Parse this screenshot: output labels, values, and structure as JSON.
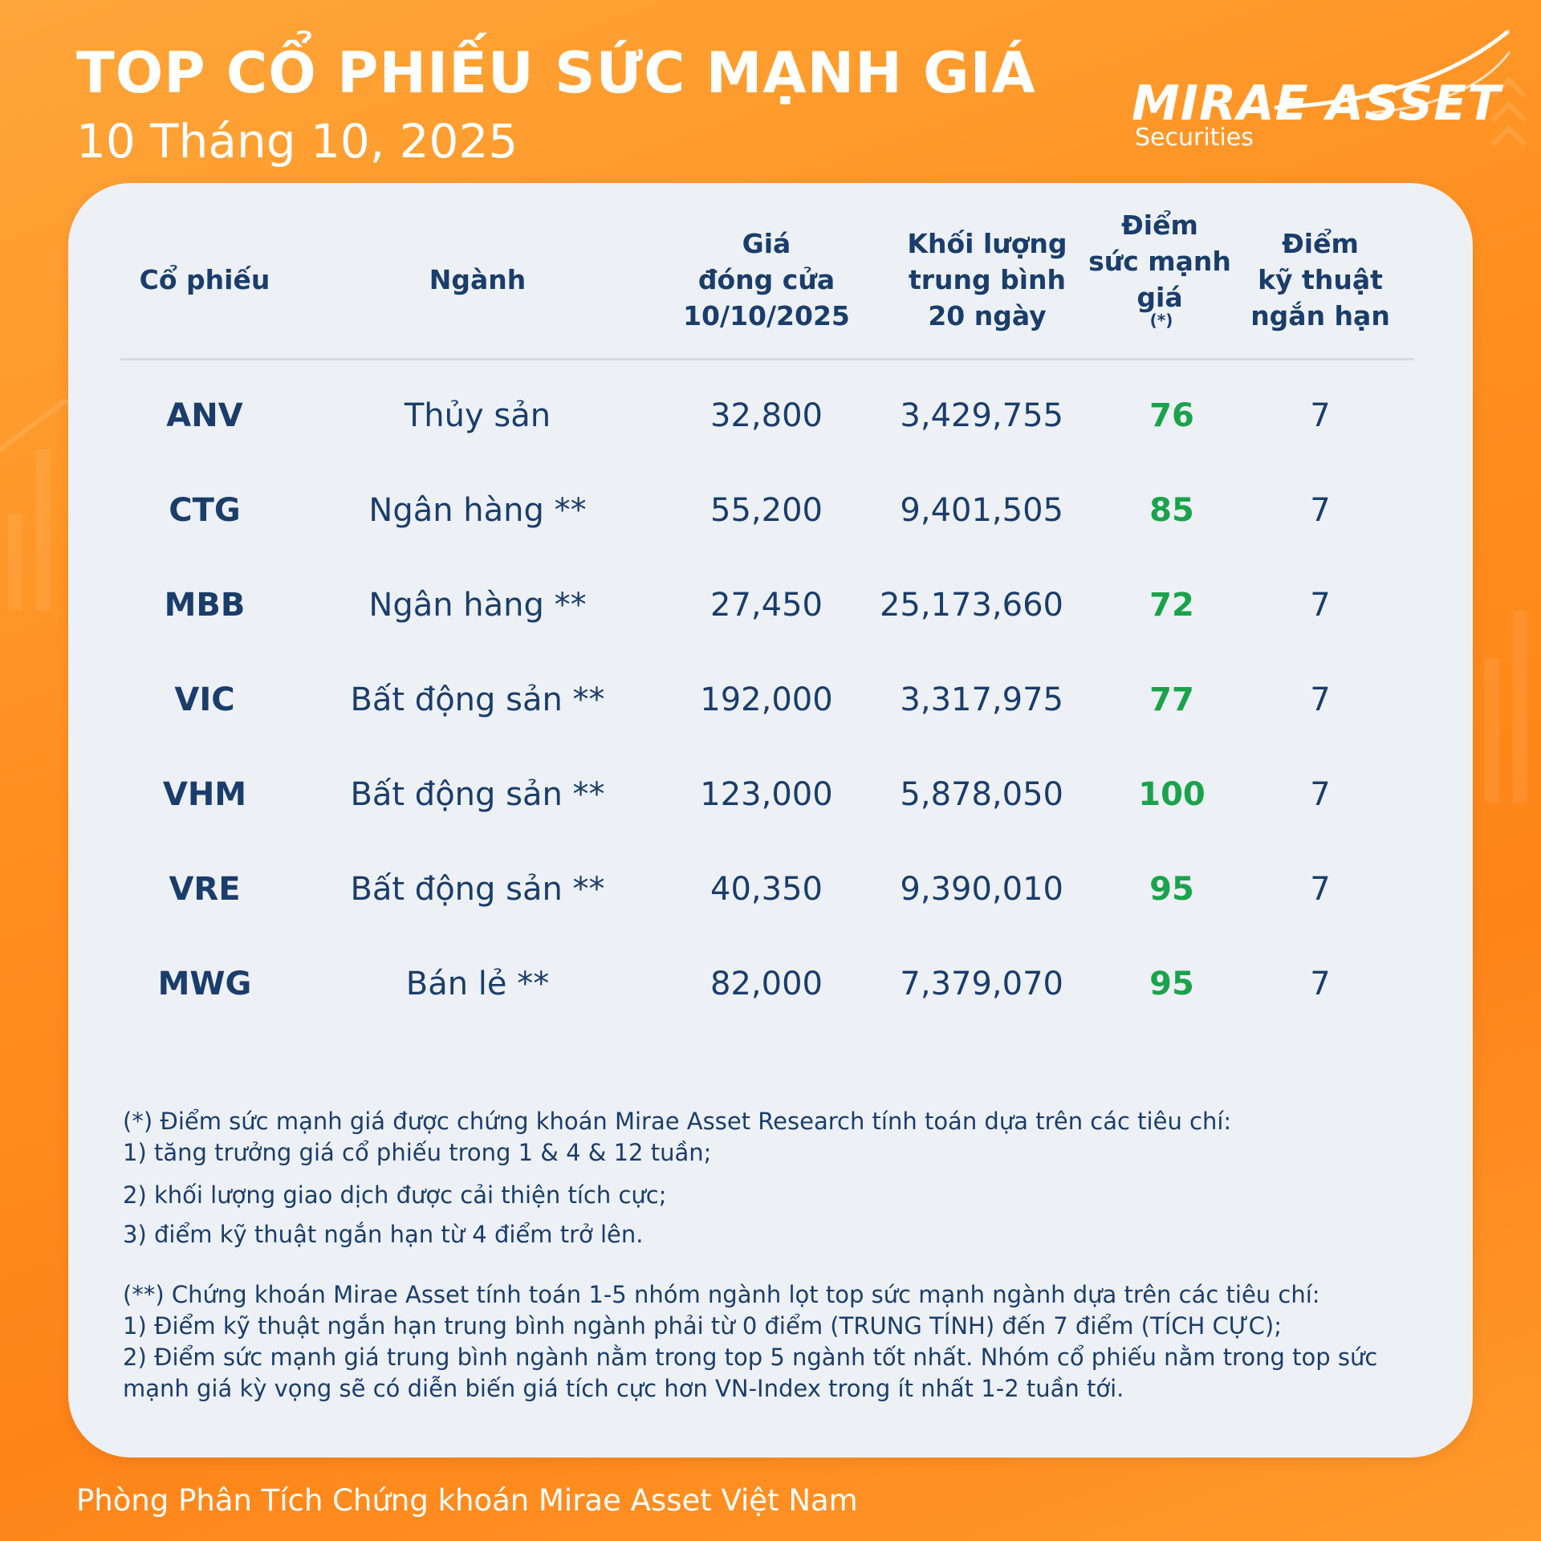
{
  "header": {
    "title": "TOP CỔ PHIẾU SỨC MẠNH GIÁ",
    "date": "10 Tháng 10, 2025"
  },
  "logo": {
    "brand": "MIRAE ASSET",
    "sub": "Securities"
  },
  "table": {
    "columns": {
      "ticker": [
        "Cổ phiếu"
      ],
      "sector": [
        "Ngành"
      ],
      "price": [
        "Giá",
        "đóng cửa",
        "10/10/2025"
      ],
      "volume": [
        "Khối lượng",
        "trung bình",
        "20 ngày"
      ],
      "strength": [
        "Điểm",
        "sức mạnh",
        "giá"
      ],
      "strength_mark": "(*)",
      "technical": [
        "Điểm",
        "kỹ thuật",
        "ngắn hạn"
      ]
    },
    "rows": [
      {
        "ticker": "ANV",
        "sector": "Thủy sản",
        "price": "32,800",
        "volume": "3,429,755",
        "strength": "76",
        "technical": "7"
      },
      {
        "ticker": "CTG",
        "sector": "Ngân hàng **",
        "price": "55,200",
        "volume": "9,401,505",
        "strength": "85",
        "technical": "7"
      },
      {
        "ticker": "MBB",
        "sector": "Ngân hàng **",
        "price": "27,450",
        "volume": "25,173,660",
        "strength": "72",
        "technical": "7"
      },
      {
        "ticker": "VIC",
        "sector": "Bất động sản **",
        "price": "192,000",
        "volume": "3,317,975",
        "strength": "77",
        "technical": "7"
      },
      {
        "ticker": "VHM",
        "sector": "Bất động sản **",
        "price": "123,000",
        "volume": "5,878,050",
        "strength": "100",
        "technical": "7"
      },
      {
        "ticker": "VRE",
        "sector": "Bất động sản **",
        "price": "40,350",
        "volume": "9,390,010",
        "strength": "95",
        "technical": "7"
      },
      {
        "ticker": "MWG",
        "sector": "Bán lẻ **",
        "price": "82,000",
        "volume": "7,379,070",
        "strength": "95",
        "technical": "7"
      }
    ]
  },
  "notes": {
    "n1_intro": "(*) Điểm sức mạnh giá được chứng khoán Mirae Asset Research tính toán dựa trên các tiêu chí:",
    "n1_item1": "1) tăng trưởng giá cổ phiếu trong 1 & 4 & 12 tuần;",
    "n1_item2": "2) khối lượng giao dịch được cải thiện tích cực;",
    "n1_item3": "3) điểm kỹ thuật ngắn hạn từ 4 điểm trở lên.",
    "n2_intro": "(**) Chứng khoán Mirae Asset tính toán 1-5 nhóm ngành lọt top sức mạnh ngành dựa trên các tiêu chí:",
    "n2_item1": "1) Điểm kỹ thuật ngắn hạn trung bình ngành phải từ 0 điểm (TRUNG TÍNH) đến 7 điểm (TÍCH CỰC);",
    "n2_item2": "2) Điểm sức mạnh giá trung bình ngành nằm trong top 5 ngành tốt nhất. Nhóm cổ phiếu nằm trong top sức mạnh giá kỳ vọng sẽ có diễn biến giá tích cực hơn VN-Index trong ít nhất 1-2 tuần tới."
  },
  "footer": "Phòng Phân Tích Chứng khoán Mirae Asset Việt Nam",
  "colors": {
    "background": "#ff8f1f",
    "card": "#edf1f6",
    "text_navy": "#1a3d6b",
    "score_green": "#1aa34a"
  }
}
